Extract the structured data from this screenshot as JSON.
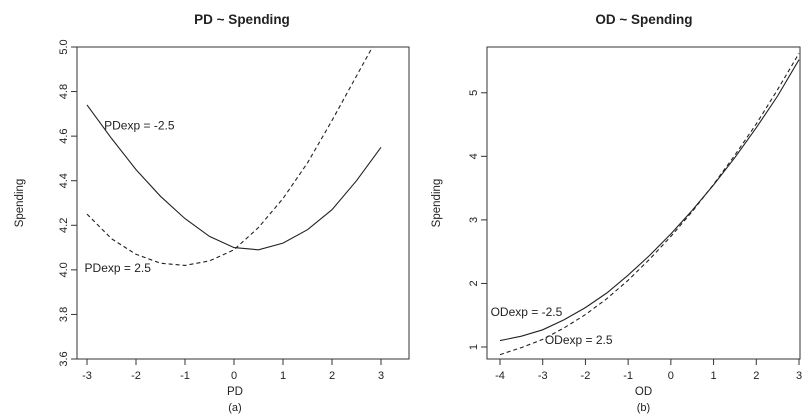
{
  "chart_data": [
    {
      "type": "line",
      "title": "PD ~ Spending",
      "xlabel": "PD",
      "ylabel": "Spending",
      "caption": "(a)",
      "xlim": [
        -3,
        3
      ],
      "ylim": [
        3.6,
        5.0
      ],
      "xticks": [
        -3,
        -2,
        -1,
        0,
        1,
        2,
        3
      ],
      "yticks": [
        3.6,
        3.8,
        4.0,
        4.2,
        4.4,
        4.6,
        4.8,
        5.0
      ],
      "xtick_labels": [
        "-3",
        "-2",
        "-1",
        "0",
        "1",
        "2",
        "3"
      ],
      "ytick_labels": [
        "3.6",
        "3.8",
        "4.0",
        "4.2",
        "4.4",
        "4.6",
        "4.8",
        "5.0"
      ],
      "grid": false,
      "series": [
        {
          "name": "PDexp = -2.5",
          "style": "solid",
          "x": [
            -3,
            -2.5,
            -2,
            -1.5,
            -1,
            -0.5,
            0,
            0.5,
            1,
            1.5,
            2,
            2.5,
            3
          ],
          "y": [
            4.74,
            4.59,
            4.45,
            4.33,
            4.23,
            4.15,
            4.1,
            4.09,
            4.12,
            4.18,
            4.27,
            4.4,
            4.55
          ]
        },
        {
          "name": "PDexp = 2.5",
          "style": "dashed",
          "x": [
            -3,
            -2.5,
            -2,
            -1.5,
            -1,
            -0.5,
            0,
            0.5,
            1,
            1.5,
            2,
            2.5,
            3
          ],
          "y": [
            4.25,
            4.14,
            4.07,
            4.03,
            4.02,
            4.04,
            4.09,
            4.19,
            4.32,
            4.48,
            4.67,
            4.87,
            5.07
          ]
        }
      ],
      "annotations": [
        {
          "text": "PDexp = -2.5",
          "x": -2.65,
          "y": 4.63
        },
        {
          "text": "PDexp = 2.5",
          "x": -3.05,
          "y": 3.99
        }
      ]
    },
    {
      "type": "line",
      "title": "OD ~ Spending",
      "xlabel": "OD",
      "ylabel": "Spending",
      "caption": "(b)",
      "xlim": [
        -4,
        3
      ],
      "ylim": [
        1,
        5.5
      ],
      "xticks": [
        -4,
        -3,
        -2,
        -1,
        0,
        1,
        2,
        3
      ],
      "yticks": [
        1,
        2,
        3,
        4,
        5
      ],
      "xtick_labels": [
        "-4",
        "-3",
        "-2",
        "-1",
        "0",
        "1",
        "2",
        "3"
      ],
      "ytick_labels": [
        "1",
        "2",
        "3",
        "4",
        "5"
      ],
      "grid": false,
      "series": [
        {
          "name": "ODexp = -2.5",
          "style": "solid",
          "x": [
            -4,
            -3.5,
            -3,
            -2.5,
            -2,
            -1.5,
            -1,
            -0.5,
            0,
            0.5,
            1,
            1.5,
            2,
            2.5,
            3
          ],
          "y": [
            1.1,
            1.17,
            1.27,
            1.43,
            1.62,
            1.85,
            2.13,
            2.44,
            2.78,
            3.15,
            3.55,
            3.98,
            4.45,
            4.95,
            5.52
          ]
        },
        {
          "name": "ODexp = 2.5",
          "style": "dashed",
          "x": [
            -4,
            -3.5,
            -3,
            -2.5,
            -2,
            -1.5,
            -1,
            -0.5,
            0,
            0.5,
            1,
            1.5,
            2,
            2.5,
            3
          ],
          "y": [
            0.88,
            0.99,
            1.12,
            1.3,
            1.51,
            1.76,
            2.05,
            2.38,
            2.74,
            3.13,
            3.56,
            4.02,
            4.51,
            5.05,
            5.62
          ]
        }
      ],
      "annotations": [
        {
          "text": "ODexp = -2.5",
          "x": -4.22,
          "y": 1.49
        },
        {
          "text": "ODexp = 2.5",
          "x": -2.95,
          "y": 1.05
        }
      ]
    }
  ]
}
